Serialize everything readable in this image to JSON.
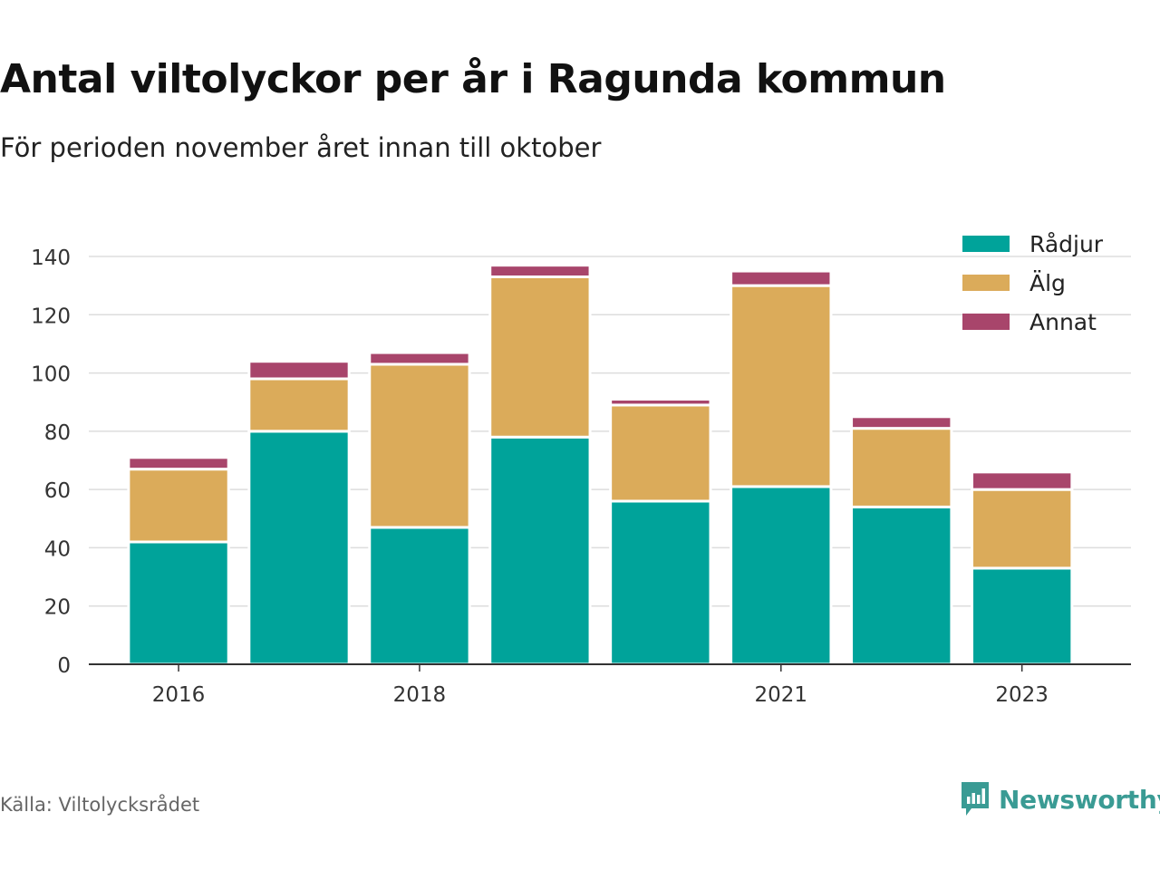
{
  "title": "Antal viltolyckor per år i Ragunda kommun",
  "subtitle": "För perioden november året innan till oktober",
  "source": "Källa: Viltolycksrådet",
  "brand": {
    "name": "Newsworthy",
    "icon": "newsworthy-logo-icon",
    "color": "#3a9b94"
  },
  "chart_data": {
    "type": "bar",
    "stacked": true,
    "categories": [
      "2016",
      "2017",
      "2018",
      "2019",
      "2020",
      "2021",
      "2022",
      "2023"
    ],
    "x_tick_labels": [
      "2016",
      "",
      "2018",
      "",
      "",
      "2021",
      "",
      "2023"
    ],
    "series": [
      {
        "name": "Rådjur",
        "color": "#00a39a",
        "values": [
          42,
          80,
          47,
          78,
          56,
          61,
          54,
          33
        ]
      },
      {
        "name": "Älg",
        "color": "#dbab5a",
        "values": [
          25,
          18,
          56,
          55,
          33,
          69,
          27,
          27
        ]
      },
      {
        "name": "Annat",
        "color": "#a8456b",
        "values": [
          4,
          6,
          4,
          4,
          2,
          5,
          4,
          6
        ]
      }
    ],
    "ylim": [
      0,
      140
    ],
    "y_ticks": [
      0,
      20,
      40,
      60,
      80,
      100,
      120,
      140
    ],
    "grid": true,
    "legend_position": "top-right"
  }
}
